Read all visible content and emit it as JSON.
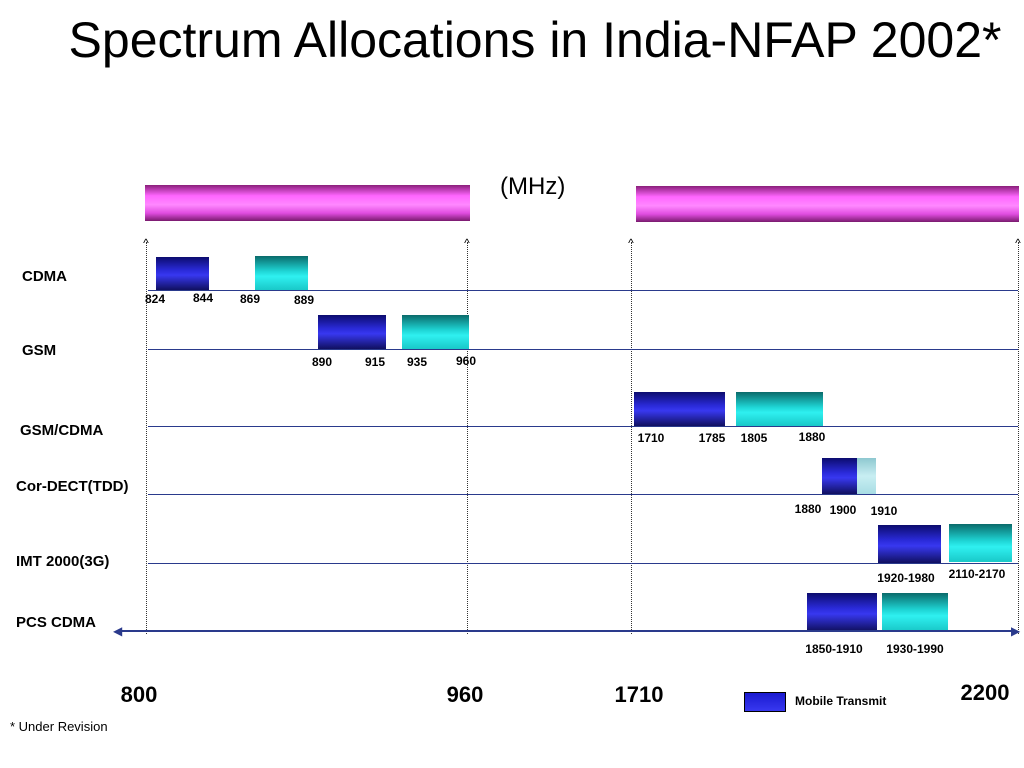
{
  "title": "Spectrum Allocations in India-NFAP 2002*",
  "unit": "(MHz)",
  "rows": [
    {
      "label": "CDMA"
    },
    {
      "label": "GSM"
    },
    {
      "label": "GSM/CDMA"
    },
    {
      "label": "Cor-DECT(TDD)"
    },
    {
      "label": "IMT 2000(3G)"
    },
    {
      "label": "PCS CDMA"
    }
  ],
  "freq_labels": {
    "cdma": [
      "824",
      "844",
      "869",
      "889"
    ],
    "gsm": [
      "890",
      "915",
      "935",
      "960"
    ],
    "gsm_cdma": [
      "1710",
      "1785",
      "1805",
      "1880"
    ],
    "cordect": [
      "1880",
      "1900",
      "1910"
    ],
    "imt": [
      "1920-1980",
      "2110-2170"
    ],
    "pcs": [
      "1850-1910",
      "1930-1990"
    ]
  },
  "axis_ticks": [
    "800",
    "960",
    "1710",
    "2200"
  ],
  "legend": {
    "label": "Mobile Transmit"
  },
  "footnote": "* Under Revision",
  "colors": {
    "mobile_transmit": "#2a2ad8",
    "base_transmit": "#1fd6d6",
    "tdd": "#c8eef2",
    "header_bar": "#ff66ff",
    "row_line": "#2a3a8c"
  }
}
